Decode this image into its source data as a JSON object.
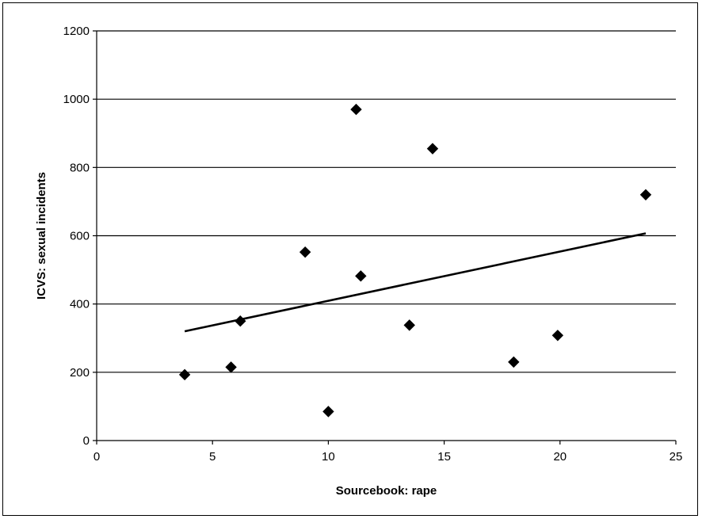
{
  "chart_data": {
    "type": "scatter",
    "title": "",
    "xlabel": "Sourcebook: rape",
    "ylabel": "ICVS: sexual incidents",
    "xlim": [
      0,
      25
    ],
    "ylim": [
      0,
      1200
    ],
    "x_ticks": [
      0,
      5,
      10,
      15,
      20,
      25
    ],
    "y_ticks": [
      0,
      200,
      400,
      600,
      800,
      1000,
      1200
    ],
    "grid": "horizontal",
    "legend": "none",
    "series": [
      {
        "points": [
          {
            "x": 3.8,
            "y": 193
          },
          {
            "x": 5.8,
            "y": 215
          },
          {
            "x": 6.2,
            "y": 350
          },
          {
            "x": 9.0,
            "y": 552
          },
          {
            "x": 10.0,
            "y": 85
          },
          {
            "x": 11.2,
            "y": 970
          },
          {
            "x": 11.4,
            "y": 482
          },
          {
            "x": 13.5,
            "y": 338
          },
          {
            "x": 14.5,
            "y": 855
          },
          {
            "x": 18.0,
            "y": 230
          },
          {
            "x": 19.9,
            "y": 308
          },
          {
            "x": 23.7,
            "y": 720
          }
        ]
      }
    ],
    "trendline": {
      "x": [
        3.8,
        23.7
      ],
      "y": [
        320,
        607
      ]
    },
    "colors": {
      "marker": "#000000",
      "line": "#000000",
      "grid": "#000000"
    }
  }
}
